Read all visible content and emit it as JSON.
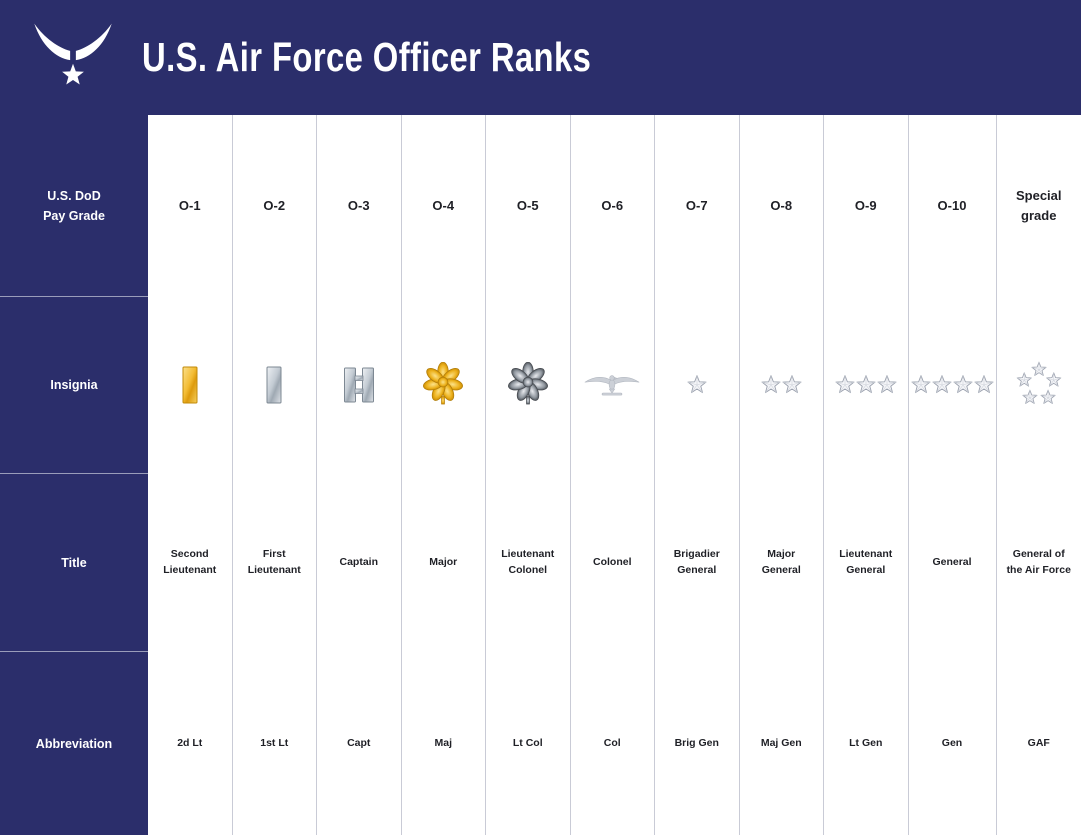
{
  "header": {
    "title": "U.S. Air Force Officer Ranks",
    "logo_icon": "usaf-wings-star-logo-icon"
  },
  "row_labels": {
    "pay_grade": "U.S. DoD\nPay Grade",
    "insignia": "Insignia",
    "title": "Title",
    "abbreviation": "Abbreviation"
  },
  "colors": {
    "navy": "#2B2E6B",
    "column_divider": "#C9CBD6",
    "sidebar_divider": "#9A9DBA",
    "gold": "#F0B429",
    "silver": "#AEB8C2",
    "text": "#1F2026"
  },
  "columns": [
    {
      "pay_grade": "O-1",
      "insignia_icon": "gold-bar-icon",
      "title": "Second Lieutenant",
      "abbreviation": "2d Lt"
    },
    {
      "pay_grade": "O-2",
      "insignia_icon": "silver-bar-icon",
      "title": "First Lieutenant",
      "abbreviation": "1st Lt"
    },
    {
      "pay_grade": "O-3",
      "insignia_icon": "double-silver-bars-icon",
      "title": "Captain",
      "abbreviation": "Capt"
    },
    {
      "pay_grade": "O-4",
      "insignia_icon": "gold-oak-leaf-icon",
      "title": "Major",
      "abbreviation": "Maj"
    },
    {
      "pay_grade": "O-5",
      "insignia_icon": "silver-oak-leaf-icon",
      "title": "Lieutenant Colonel",
      "abbreviation": "Lt Col"
    },
    {
      "pay_grade": "O-6",
      "insignia_icon": "silver-eagle-icon",
      "title": "Colonel",
      "abbreviation": "Col"
    },
    {
      "pay_grade": "O-7",
      "insignia_icon": "one-star-icon",
      "title": "Brigadier General",
      "abbreviation": "Brig Gen"
    },
    {
      "pay_grade": "O-8",
      "insignia_icon": "two-stars-icon",
      "title": "Major General",
      "abbreviation": "Maj Gen"
    },
    {
      "pay_grade": "O-9",
      "insignia_icon": "three-stars-icon",
      "title": "Lieutenant General",
      "abbreviation": "Lt Gen"
    },
    {
      "pay_grade": "O-10",
      "insignia_icon": "four-stars-icon",
      "title": "General",
      "abbreviation": "Gen"
    },
    {
      "pay_grade": "Special grade",
      "insignia_icon": "five-stars-circle-icon",
      "title": "General of the Air Force",
      "abbreviation": "GAF"
    }
  ]
}
